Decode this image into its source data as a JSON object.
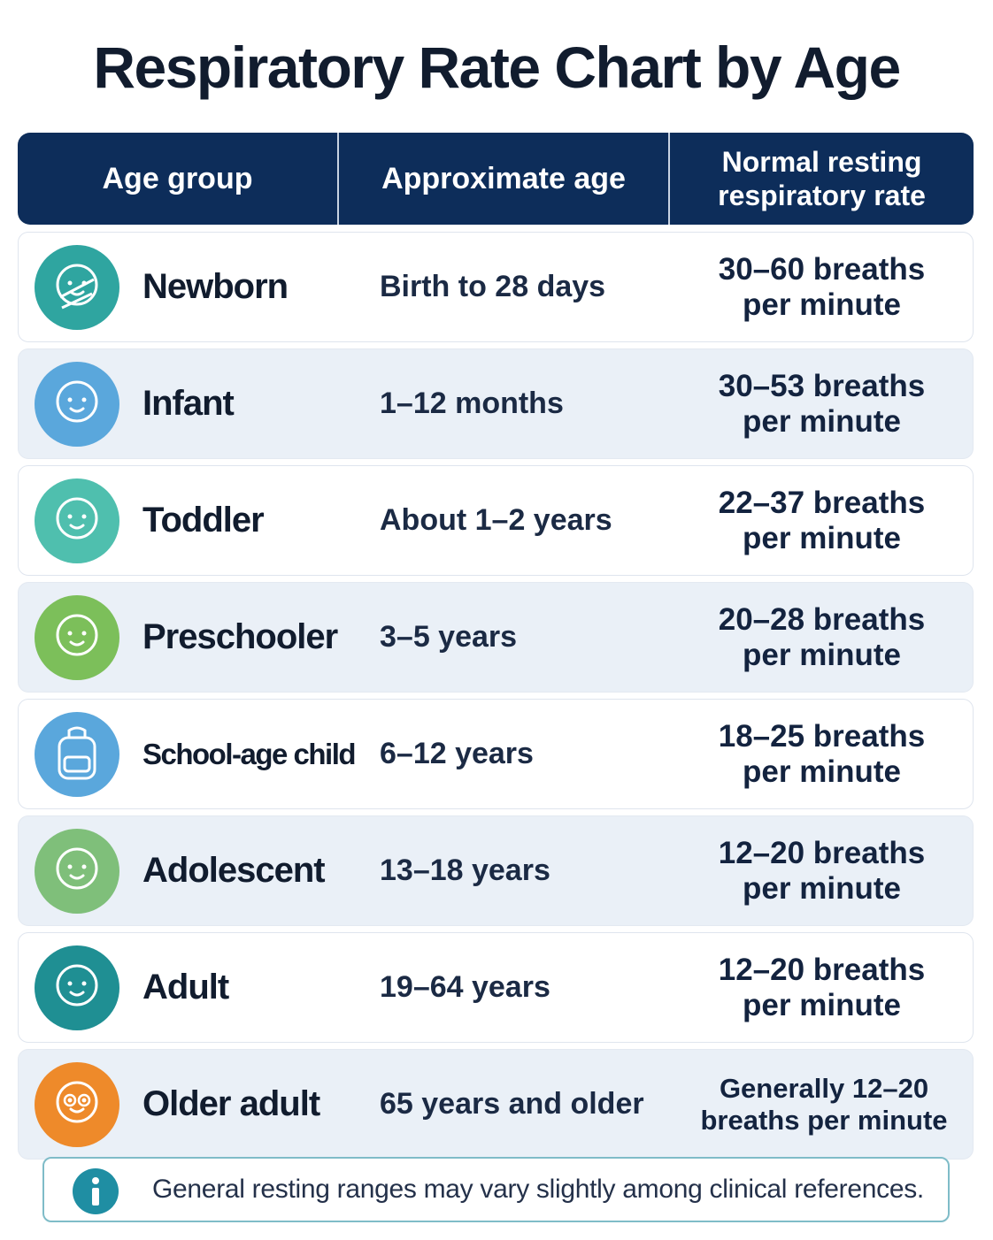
{
  "header": {
    "title": "Respiratory Rate Chart by Age"
  },
  "table": {
    "headers": [
      "Age group",
      "Approximate age",
      "Normal resting respiratory rate"
    ],
    "rows": [
      [
        "Newborn",
        "Birth to 28 days",
        "30–60 breaths per minute"
      ],
      [
        "Infant",
        "1–12 months",
        "30–53 breaths per minute"
      ],
      [
        "Toddler",
        "About 1–2 years",
        "22–37 breaths per minute"
      ],
      [
        "Preschooler",
        "3–5 years",
        "20–28 breaths per minute"
      ],
      [
        "School-age child",
        "6–12 years",
        "18–25 breaths per minute"
      ],
      [
        "Adolescent",
        "13–18 years",
        "12–20 breaths per minute"
      ],
      [
        "Adult",
        "19–64 years",
        "12–20 breaths per minute"
      ],
      [
        "Older adult",
        "65 years and older",
        "Generally 12–20 breaths per minute"
      ]
    ]
  },
  "footer": {
    "note": "General resting ranges may vary slightly among clinical references."
  }
}
